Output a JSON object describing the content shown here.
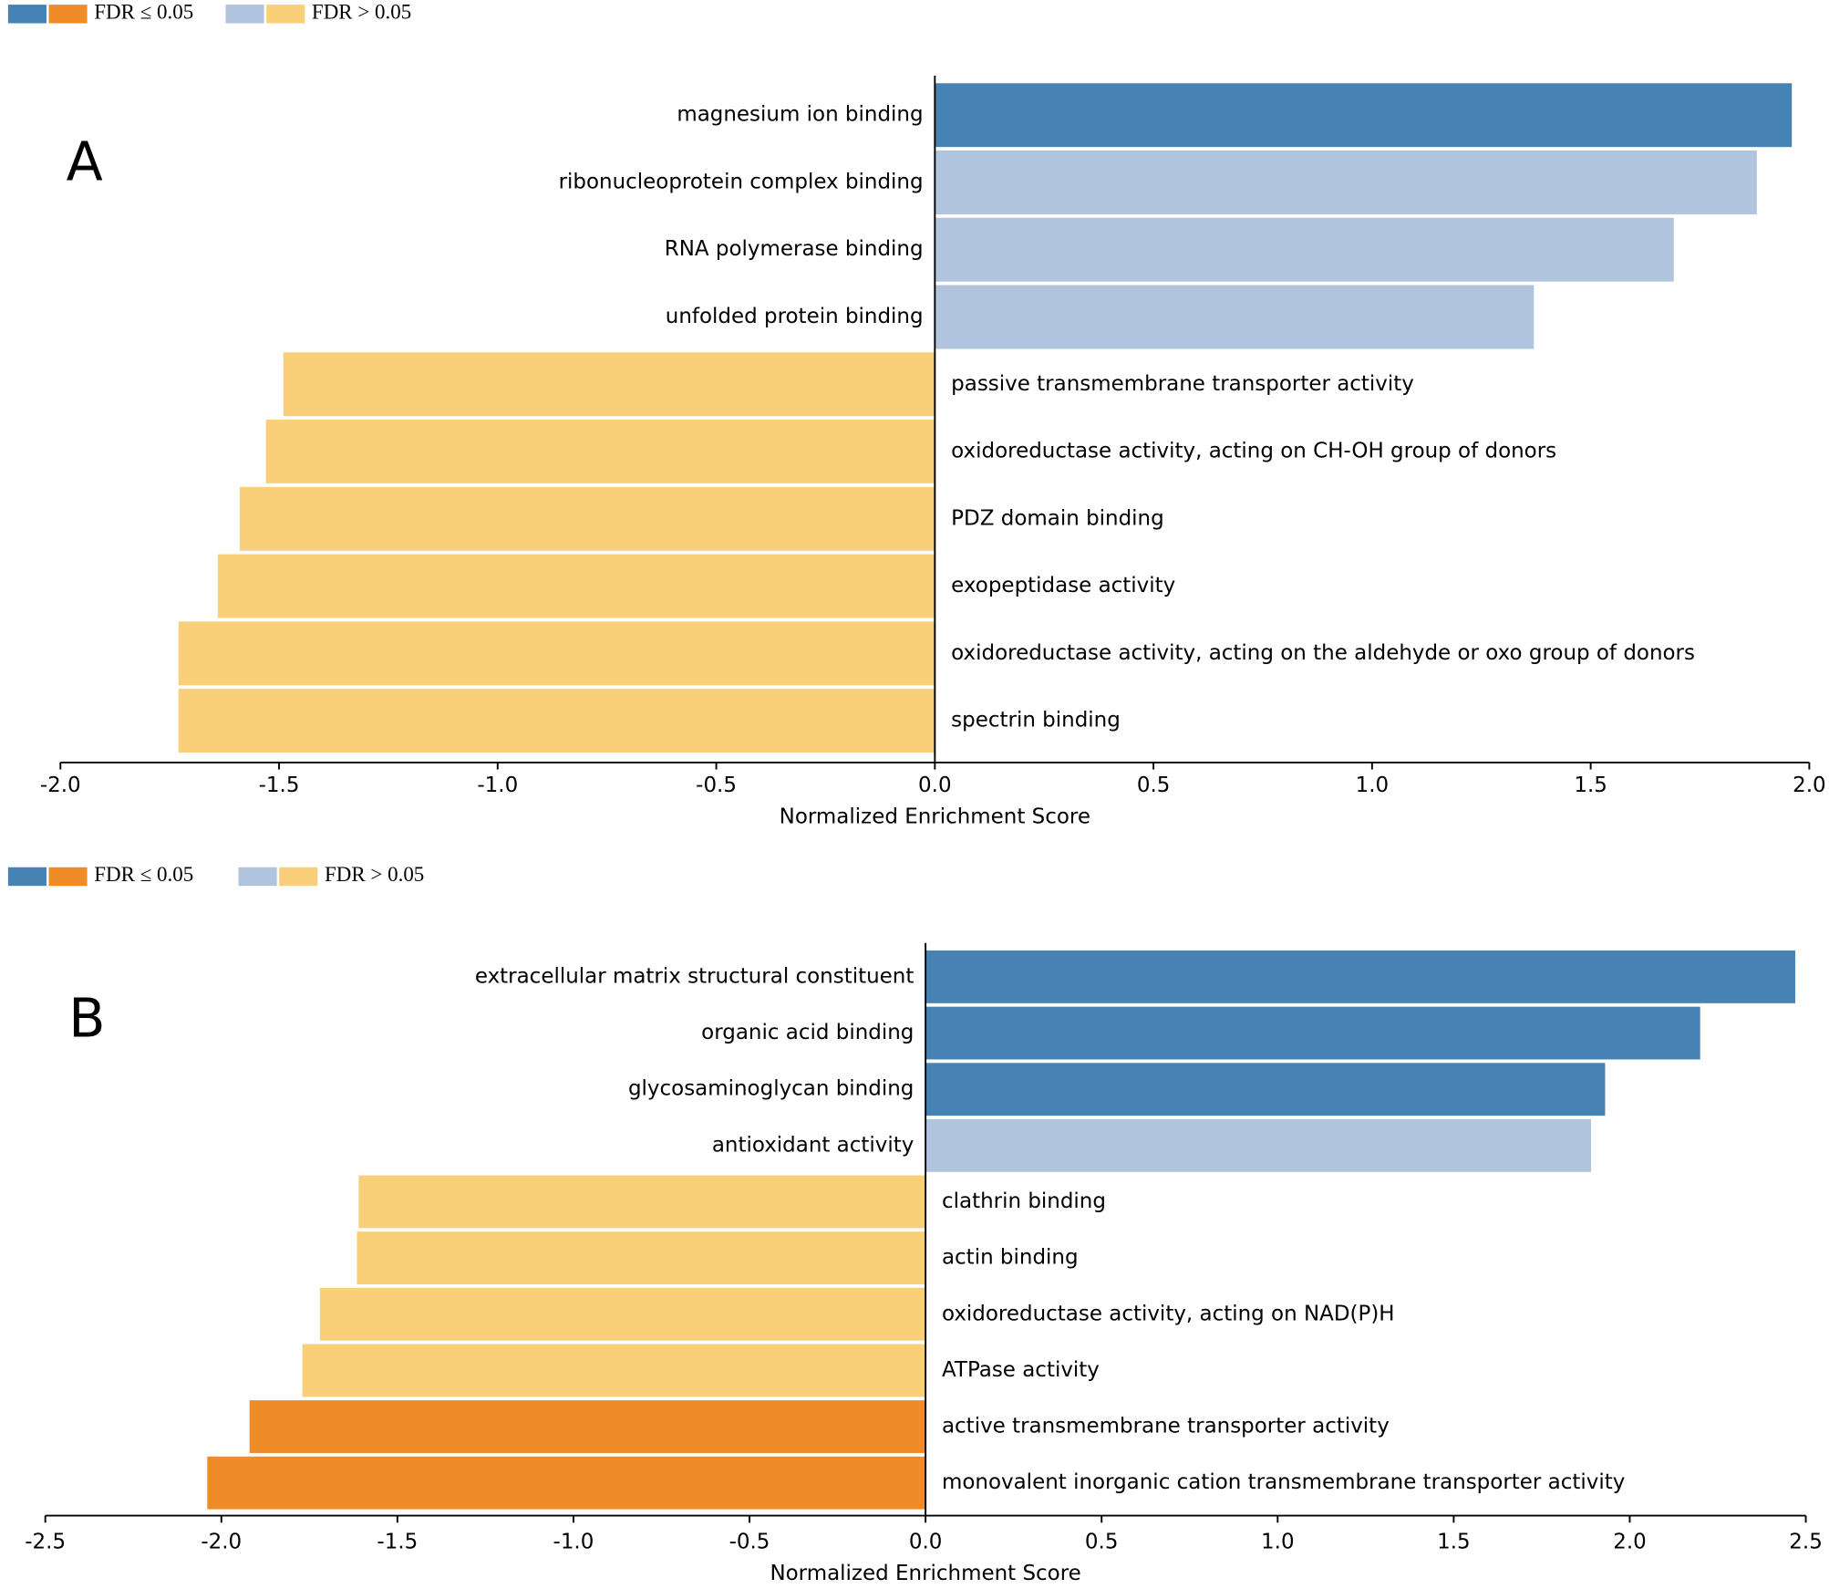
{
  "chart_data": [
    {
      "type": "bar",
      "orientation": "horizontal",
      "panel_label": "A",
      "legend": [
        {
          "label": "FDR ≤ 0.05",
          "colors": [
            "#4682b4",
            "#f08c28"
          ]
        },
        {
          "label": "FDR > 0.05",
          "colors": [
            "#b0c4de",
            "#f9cf7a"
          ]
        }
      ],
      "categories": [
        "magnesium ion binding",
        "ribonucleoprotein complex binding",
        "RNA polymerase binding",
        "unfolded protein binding",
        "passive transmembrane transporter activity",
        "oxidoreductase activity, acting on CH-OH group of donors",
        "PDZ domain binding",
        "exopeptidase activity",
        "oxidoreductase activity, acting on the aldehyde or oxo group of donors",
        "spectrin binding"
      ],
      "values": [
        1.96,
        1.88,
        1.69,
        1.37,
        -1.49,
        -1.53,
        -1.59,
        -1.64,
        -1.73,
        -1.73
      ],
      "colors": [
        "#4682b4",
        "#b0c4de",
        "#b0c4de",
        "#b0c4de",
        "#f9cf7a",
        "#f9cf7a",
        "#f9cf7a",
        "#f9cf7a",
        "#f9cf7a",
        "#f9cf7a"
      ],
      "xlabel": "Normalized Enrichment Score",
      "xlim": [
        -2.0,
        2.0
      ],
      "xticks": [
        {
          "value": -2.0,
          "label": "-2.0"
        },
        {
          "value": -1.5,
          "label": "-1.5"
        },
        {
          "value": -1.0,
          "label": "-1.0"
        },
        {
          "value": -0.5,
          "label": "-0.5"
        },
        {
          "value": 0,
          "label": "0.0"
        },
        {
          "value": 0.5,
          "label": "0.5"
        },
        {
          "value": 1.0,
          "label": "1.0"
        },
        {
          "value": 1.5,
          "label": "1.5"
        },
        {
          "value": 2.0,
          "label": "2.0"
        }
      ]
    },
    {
      "type": "bar",
      "orientation": "horizontal",
      "panel_label": "B",
      "legend": [
        {
          "label": "FDR ≤ 0.05",
          "colors": [
            "#4682b4",
            "#f08c28"
          ]
        },
        {
          "label": "FDR > 0.05",
          "colors": [
            "#b0c4de",
            "#f9cf7a"
          ]
        }
      ],
      "categories": [
        "extracellular matrix structural constituent",
        "organic acid binding",
        "glycosaminoglycan binding",
        "antioxidant activity",
        "clathrin binding",
        "actin binding",
        "oxidoreductase activity, acting on NAD(P)H",
        "ATPase activity",
        "active transmembrane transporter activity",
        "monovalent inorganic cation transmembrane transporter activity"
      ],
      "values": [
        2.47,
        2.2,
        1.93,
        1.89,
        -1.61,
        -1.615,
        -1.72,
        -1.77,
        -1.92,
        -2.04
      ],
      "colors": [
        "#4682b4",
        "#4682b4",
        "#4682b4",
        "#b0c4de",
        "#f9cf7a",
        "#f9cf7a",
        "#f9cf7a",
        "#f9cf7a",
        "#f08c28",
        "#f08c28"
      ],
      "xlabel": "Normalized Enrichment Score",
      "xlim": [
        -2.5,
        2.5
      ],
      "xticks": [
        {
          "value": -2.5,
          "label": "-2.5"
        },
        {
          "value": -2.0,
          "label": "-2.0"
        },
        {
          "value": -1.5,
          "label": "-1.5"
        },
        {
          "value": -1.0,
          "label": "-1.0"
        },
        {
          "value": -0.5,
          "label": "-0.5"
        },
        {
          "value": 0,
          "label": "0.0"
        },
        {
          "value": 0.5,
          "label": "0.5"
        },
        {
          "value": 1.0,
          "label": "1.0"
        },
        {
          "value": 1.5,
          "label": "1.5"
        },
        {
          "value": 2.0,
          "label": "2.0"
        },
        {
          "value": 2.5,
          "label": "2.5"
        }
      ]
    }
  ]
}
